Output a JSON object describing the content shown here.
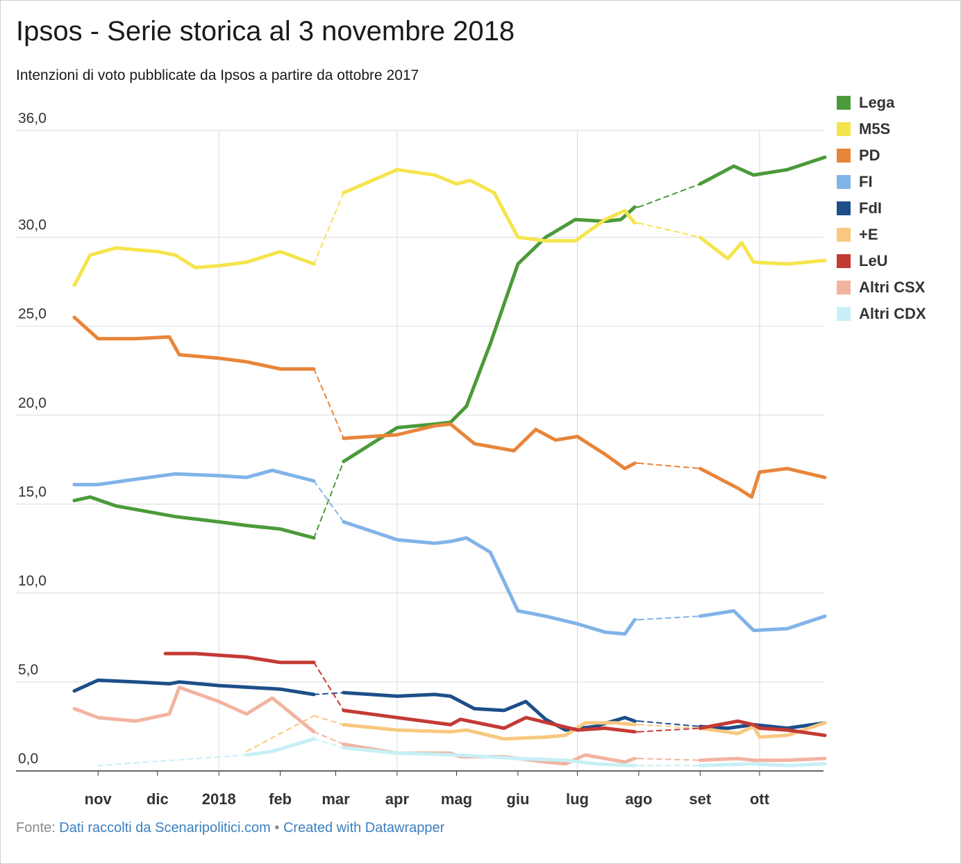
{
  "title": "Ipsos - Serie storica al 3 novembre 2018",
  "subtitle": "Intenzioni di voto pubblicate da Ipsos a partire da ottobre 2017",
  "footer": {
    "prefix": "Fonte:",
    "source_link": "Dati raccolti da Scenaripolitici.com",
    "separator": "•",
    "credit_link": "Created with Datawrapper"
  },
  "chart_data": {
    "type": "line",
    "title": "Ipsos - Serie storica al 3 novembre 2018",
    "subtitle": "Intenzioni di voto pubblicate da Ipsos a partire da ottobre 2017",
    "xlabel": "",
    "ylabel": "",
    "x_range": [
      "2017-10-20",
      "2018-11-03"
    ],
    "ylim": [
      0,
      36
    ],
    "y_ticks": [
      0,
      5,
      10,
      15,
      20,
      25,
      30,
      36
    ],
    "y_tick_labels": [
      "0,0",
      "5,0",
      "10,0",
      "15,0",
      "20,0",
      "25,0",
      "30,0",
      "36,0"
    ],
    "x_ticks": [
      "2017-11-01",
      "2017-12-01",
      "2018-01-01",
      "2018-02-01",
      "2018-03-01",
      "2018-04-01",
      "2018-05-01",
      "2018-06-01",
      "2018-07-01",
      "2018-08-01",
      "2018-09-01",
      "2018-10-01"
    ],
    "x_tick_labels": [
      "nov",
      "dic",
      "2018",
      "feb",
      "mar",
      "apr",
      "mag",
      "giu",
      "lug",
      "ago",
      "set",
      "ott"
    ],
    "grid": "on",
    "legend_position": "right",
    "series": [
      {
        "name": "Lega",
        "color": "#4b9a3a",
        "points": [
          [
            "2017-10-20",
            15.2
          ],
          [
            "2017-10-28",
            15.4
          ],
          [
            "2017-11-10",
            14.9
          ],
          [
            "2017-12-10",
            14.3
          ],
          [
            "2018-01-01",
            14.0
          ],
          [
            "2018-01-15",
            13.8
          ],
          [
            "2018-02-01",
            13.6
          ],
          [
            "2018-02-18",
            13.1
          ],
          [
            "2018-03-05",
            17.4
          ],
          [
            "2018-04-01",
            19.3
          ],
          [
            "2018-04-20",
            19.5
          ],
          [
            "2018-04-28",
            19.6
          ],
          [
            "2018-05-06",
            20.5
          ],
          [
            "2018-05-18",
            24.0
          ],
          [
            "2018-06-01",
            28.5
          ],
          [
            "2018-06-15",
            30.0
          ],
          [
            "2018-06-30",
            31.0
          ],
          [
            "2018-07-15",
            30.9
          ],
          [
            "2018-07-23",
            31.0
          ],
          [
            "2018-07-30",
            31.7
          ],
          [
            "2018-08-01",
            31.7
          ],
          [
            "2018-09-01",
            33.0
          ],
          [
            "2018-09-18",
            34.0
          ],
          [
            "2018-09-28",
            33.5
          ],
          [
            "2018-10-15",
            33.8
          ],
          [
            "2018-11-03",
            34.5
          ]
        ]
      },
      {
        "name": "M5S",
        "color": "#f5e44c",
        "points": [
          [
            "2017-10-20",
            27.3
          ],
          [
            "2017-10-28",
            29.0
          ],
          [
            "2017-11-10",
            29.4
          ],
          [
            "2017-12-01",
            29.2
          ],
          [
            "2017-12-10",
            29.0
          ],
          [
            "2017-12-20",
            28.3
          ],
          [
            "2018-01-01",
            28.4
          ],
          [
            "2018-01-15",
            28.6
          ],
          [
            "2018-02-01",
            29.2
          ],
          [
            "2018-02-18",
            28.5
          ],
          [
            "2018-03-05",
            32.5
          ],
          [
            "2018-04-01",
            33.8
          ],
          [
            "2018-04-20",
            33.5
          ],
          [
            "2018-05-01",
            33.0
          ],
          [
            "2018-05-08",
            33.2
          ],
          [
            "2018-05-20",
            32.5
          ],
          [
            "2018-06-01",
            30.0
          ],
          [
            "2018-06-15",
            29.8
          ],
          [
            "2018-06-30",
            29.8
          ],
          [
            "2018-07-15",
            31.0
          ],
          [
            "2018-07-25",
            31.5
          ],
          [
            "2018-07-30",
            30.8
          ],
          [
            "2018-08-01",
            30.8
          ],
          [
            "2018-09-01",
            30.0
          ],
          [
            "2018-09-15",
            28.8
          ],
          [
            "2018-09-22",
            29.7
          ],
          [
            "2018-09-28",
            28.6
          ],
          [
            "2018-10-15",
            28.5
          ],
          [
            "2018-11-03",
            28.7
          ]
        ]
      },
      {
        "name": "PD",
        "color": "#e8853a",
        "points": [
          [
            "2017-10-20",
            25.5
          ],
          [
            "2017-11-01",
            24.3
          ],
          [
            "2017-11-20",
            24.3
          ],
          [
            "2017-12-07",
            24.4
          ],
          [
            "2017-12-12",
            23.4
          ],
          [
            "2018-01-01",
            23.2
          ],
          [
            "2018-01-15",
            23.0
          ],
          [
            "2018-02-01",
            22.6
          ],
          [
            "2018-02-18",
            22.6
          ],
          [
            "2018-03-05",
            18.7
          ],
          [
            "2018-04-01",
            18.9
          ],
          [
            "2018-04-20",
            19.4
          ],
          [
            "2018-04-28",
            19.5
          ],
          [
            "2018-05-10",
            18.4
          ],
          [
            "2018-05-30",
            18.0
          ],
          [
            "2018-06-10",
            19.2
          ],
          [
            "2018-06-20",
            18.6
          ],
          [
            "2018-07-01",
            18.8
          ],
          [
            "2018-07-15",
            17.8
          ],
          [
            "2018-07-25",
            17.0
          ],
          [
            "2018-07-30",
            17.3
          ],
          [
            "2018-08-01",
            17.3
          ],
          [
            "2018-09-01",
            17.0
          ],
          [
            "2018-09-20",
            15.9
          ],
          [
            "2018-09-27",
            15.4
          ],
          [
            "2018-10-01",
            16.8
          ],
          [
            "2018-10-15",
            17.0
          ],
          [
            "2018-11-03",
            16.5
          ]
        ]
      },
      {
        "name": "FI",
        "color": "#80b3e8",
        "points": [
          [
            "2017-10-20",
            16.1
          ],
          [
            "2017-11-01",
            16.1
          ],
          [
            "2017-11-20",
            16.4
          ],
          [
            "2017-12-10",
            16.7
          ],
          [
            "2018-01-01",
            16.6
          ],
          [
            "2018-01-15",
            16.5
          ],
          [
            "2018-01-28",
            16.9
          ],
          [
            "2018-02-18",
            16.3
          ],
          [
            "2018-03-05",
            14.0
          ],
          [
            "2018-04-01",
            13.0
          ],
          [
            "2018-04-20",
            12.8
          ],
          [
            "2018-04-28",
            12.9
          ],
          [
            "2018-05-06",
            13.1
          ],
          [
            "2018-05-18",
            12.3
          ],
          [
            "2018-06-01",
            9.0
          ],
          [
            "2018-06-15",
            8.7
          ],
          [
            "2018-06-30",
            8.3
          ],
          [
            "2018-07-15",
            7.8
          ],
          [
            "2018-07-25",
            7.7
          ],
          [
            "2018-07-30",
            8.5
          ],
          [
            "2018-08-01",
            8.5
          ],
          [
            "2018-09-01",
            8.7
          ],
          [
            "2018-09-18",
            9.0
          ],
          [
            "2018-09-28",
            7.9
          ],
          [
            "2018-10-15",
            8.0
          ],
          [
            "2018-11-03",
            8.7
          ]
        ]
      },
      {
        "name": "FdI",
        "color": "#1d4e89",
        "points": [
          [
            "2017-10-20",
            4.5
          ],
          [
            "2017-11-01",
            5.1
          ],
          [
            "2017-11-20",
            5.0
          ],
          [
            "2017-12-07",
            4.9
          ],
          [
            "2017-12-12",
            5.0
          ],
          [
            "2018-01-01",
            4.8
          ],
          [
            "2018-02-01",
            4.6
          ],
          [
            "2018-02-18",
            4.3
          ],
          [
            "2018-03-05",
            4.4
          ],
          [
            "2018-04-01",
            4.2
          ],
          [
            "2018-04-20",
            4.3
          ],
          [
            "2018-04-28",
            4.2
          ],
          [
            "2018-05-10",
            3.5
          ],
          [
            "2018-05-25",
            3.4
          ],
          [
            "2018-06-05",
            3.9
          ],
          [
            "2018-06-15",
            2.9
          ],
          [
            "2018-06-25",
            2.3
          ],
          [
            "2018-07-10",
            2.5
          ],
          [
            "2018-07-25",
            3.0
          ],
          [
            "2018-07-30",
            2.8
          ],
          [
            "2018-08-01",
            2.8
          ],
          [
            "2018-09-01",
            2.5
          ],
          [
            "2018-09-15",
            2.4
          ],
          [
            "2018-09-28",
            2.6
          ],
          [
            "2018-10-15",
            2.4
          ],
          [
            "2018-11-03",
            2.7
          ]
        ]
      },
      {
        "name": "+E",
        "color": "#f8c880",
        "points": [
          [
            "2018-01-15",
            1.1
          ],
          [
            "2018-02-18",
            3.1
          ],
          [
            "2018-03-05",
            2.6
          ],
          [
            "2018-04-01",
            2.3
          ],
          [
            "2018-04-28",
            2.2
          ],
          [
            "2018-05-06",
            2.3
          ],
          [
            "2018-05-25",
            1.8
          ],
          [
            "2018-06-15",
            1.9
          ],
          [
            "2018-06-25",
            2.0
          ],
          [
            "2018-07-05",
            2.7
          ],
          [
            "2018-07-20",
            2.7
          ],
          [
            "2018-07-30",
            2.6
          ],
          [
            "2018-08-01",
            2.6
          ],
          [
            "2018-09-01",
            2.4
          ],
          [
            "2018-09-20",
            2.1
          ],
          [
            "2018-09-28",
            2.5
          ],
          [
            "2018-10-01",
            1.9
          ],
          [
            "2018-10-15",
            2.0
          ],
          [
            "2018-11-03",
            2.7
          ]
        ]
      },
      {
        "name": "LeU",
        "color": "#c43a34",
        "points": [
          [
            "2017-12-05",
            6.6
          ],
          [
            "2017-12-20",
            6.6
          ],
          [
            "2018-01-15",
            6.4
          ],
          [
            "2018-02-01",
            6.1
          ],
          [
            "2018-02-18",
            6.1
          ],
          [
            "2018-03-05",
            3.4
          ],
          [
            "2018-04-01",
            3.0
          ],
          [
            "2018-04-28",
            2.6
          ],
          [
            "2018-05-03",
            2.9
          ],
          [
            "2018-05-25",
            2.4
          ],
          [
            "2018-06-05",
            3.0
          ],
          [
            "2018-06-20",
            2.6
          ],
          [
            "2018-07-01",
            2.3
          ],
          [
            "2018-07-15",
            2.4
          ],
          [
            "2018-07-30",
            2.2
          ],
          [
            "2018-08-01",
            2.2
          ],
          [
            "2018-09-01",
            2.4
          ],
          [
            "2018-09-20",
            2.8
          ],
          [
            "2018-09-28",
            2.6
          ],
          [
            "2018-10-01",
            2.4
          ],
          [
            "2018-10-15",
            2.3
          ],
          [
            "2018-11-03",
            2.0
          ]
        ]
      },
      {
        "name": "Altri CSX",
        "color": "#f2b4a0",
        "points": [
          [
            "2017-10-20",
            3.5
          ],
          [
            "2017-11-01",
            3.0
          ],
          [
            "2017-11-20",
            2.8
          ],
          [
            "2017-12-07",
            3.2
          ],
          [
            "2017-12-12",
            4.7
          ],
          [
            "2018-01-01",
            3.9
          ],
          [
            "2018-01-15",
            3.2
          ],
          [
            "2018-01-28",
            4.1
          ],
          [
            "2018-02-18",
            2.2
          ],
          [
            "2018-03-05",
            1.5
          ],
          [
            "2018-04-01",
            1.0
          ],
          [
            "2018-04-28",
            1.0
          ],
          [
            "2018-05-03",
            0.8
          ],
          [
            "2018-05-25",
            0.8
          ],
          [
            "2018-06-15",
            0.5
          ],
          [
            "2018-06-25",
            0.4
          ],
          [
            "2018-07-05",
            0.9
          ],
          [
            "2018-07-25",
            0.5
          ],
          [
            "2018-07-30",
            0.7
          ],
          [
            "2018-08-01",
            0.7
          ],
          [
            "2018-09-01",
            0.6
          ],
          [
            "2018-09-20",
            0.7
          ],
          [
            "2018-09-28",
            0.6
          ],
          [
            "2018-10-15",
            0.6
          ],
          [
            "2018-11-03",
            0.7
          ]
        ]
      },
      {
        "name": "Altri CDX",
        "color": "#c7f0f6",
        "points": [
          [
            "2017-11-01",
            0.3
          ],
          [
            "2018-01-15",
            0.9
          ],
          [
            "2018-01-28",
            1.1
          ],
          [
            "2018-02-18",
            1.8
          ],
          [
            "2018-03-05",
            1.3
          ],
          [
            "2018-04-01",
            1.0
          ],
          [
            "2018-05-01",
            0.9
          ],
          [
            "2018-06-01",
            0.7
          ],
          [
            "2018-06-25",
            0.6
          ],
          [
            "2018-07-10",
            0.4
          ],
          [
            "2018-07-30",
            0.3
          ],
          [
            "2018-08-01",
            0.3
          ],
          [
            "2018-09-01",
            0.3
          ],
          [
            "2018-09-28",
            0.4
          ],
          [
            "2018-10-15",
            0.3
          ],
          [
            "2018-11-03",
            0.4
          ]
        ]
      }
    ]
  }
}
